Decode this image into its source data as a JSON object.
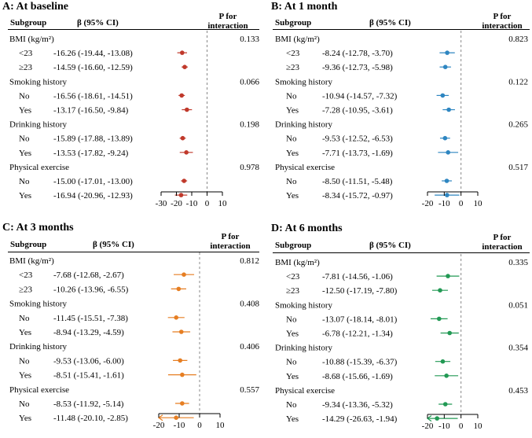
{
  "headers": {
    "subgroup": "Subgroup",
    "beta": "β (95% CI)",
    "p_line1": "P for",
    "p_line2": "interaction"
  },
  "chart_data": [
    {
      "type": "forest",
      "title": "A: At baseline",
      "color": "#c0392b",
      "xlim": [
        -30,
        10
      ],
      "xticks": [
        -30,
        -20,
        -10,
        0,
        10
      ],
      "groups": [
        {
          "name": "BMI (kg/m²)",
          "p": "0.133",
          "rows": [
            {
              "label": "<23",
              "est": -16.26,
              "lo": -19.44,
              "hi": -13.08,
              "ci": "-16.26 (-19.44, -13.08)"
            },
            {
              "label": "≥23",
              "est": -14.59,
              "lo": -16.6,
              "hi": -12.59,
              "ci": "-14.59 (-16.60, -12.59)"
            }
          ]
        },
        {
          "name": "Smoking history",
          "p": "0.066",
          "rows": [
            {
              "label": "No",
              "est": -16.56,
              "lo": -18.61,
              "hi": -14.51,
              "ci": "-16.56 (-18.61, -14.51)"
            },
            {
              "label": "Yes",
              "est": -13.17,
              "lo": -16.5,
              "hi": -9.84,
              "ci": "-13.17 (-16.50, -9.84)"
            }
          ]
        },
        {
          "name": "Drinking history",
          "p": "0.198",
          "rows": [
            {
              "label": "No",
              "est": -15.89,
              "lo": -17.88,
              "hi": -13.89,
              "ci": "-15.89 (-17.88, -13.89)"
            },
            {
              "label": "Yes",
              "est": -13.53,
              "lo": -17.82,
              "hi": -9.24,
              "ci": "-13.53 (-17.82, -9.24)"
            }
          ]
        },
        {
          "name": "Physical exercise",
          "p": "0.978",
          "rows": [
            {
              "label": "No",
              "est": -15.0,
              "lo": -17.01,
              "hi": -13.0,
              "ci": "-15.00 (-17.01, -13.00)"
            },
            {
              "label": "Yes",
              "est": -16.94,
              "lo": -20.96,
              "hi": -12.93,
              "ci": "-16.94 (-20.96, -12.93)"
            }
          ]
        }
      ]
    },
    {
      "type": "forest",
      "title": "B: At 1 month",
      "color": "#2e86c1",
      "xlim": [
        -20,
        10
      ],
      "xticks": [
        -20,
        -10,
        0,
        10
      ],
      "groups": [
        {
          "name": "BMI (kg/m²)",
          "p": "0.823",
          "rows": [
            {
              "label": "<23",
              "est": -8.24,
              "lo": -12.78,
              "hi": -3.7,
              "ci": "-8.24 (-12.78, -3.70)"
            },
            {
              "label": "≥23",
              "est": -9.36,
              "lo": -12.73,
              "hi": -5.98,
              "ci": "-9.36 (-12.73, -5.98)"
            }
          ]
        },
        {
          "name": "Smoking history",
          "p": "0.122",
          "rows": [
            {
              "label": "No",
              "est": -10.94,
              "lo": -14.57,
              "hi": -7.32,
              "ci": "-10.94 (-14.57, -7.32)"
            },
            {
              "label": "Yes",
              "est": -7.28,
              "lo": -10.95,
              "hi": -3.61,
              "ci": "-7.28 (-10.95, -3.61)"
            }
          ]
        },
        {
          "name": "Drinking history",
          "p": "0.265",
          "rows": [
            {
              "label": "No",
              "est": -9.53,
              "lo": -12.52,
              "hi": -6.53,
              "ci": "-9.53 (-12.52, -6.53)"
            },
            {
              "label": "Yes",
              "est": -7.71,
              "lo": -13.73,
              "hi": -1.69,
              "ci": "-7.71 (-13.73, -1.69)"
            }
          ]
        },
        {
          "name": "Physical exercise",
          "p": "0.517",
          "rows": [
            {
              "label": "No",
              "est": -8.5,
              "lo": -11.51,
              "hi": -5.48,
              "ci": "-8.50 (-11.51, -5.48)"
            },
            {
              "label": "Yes",
              "est": -8.34,
              "lo": -15.72,
              "hi": -0.97,
              "ci": "-8.34 (-15.72, -0.97)"
            }
          ]
        }
      ]
    },
    {
      "type": "forest",
      "title": "C: At 3 months",
      "color": "#e67e22",
      "xlim": [
        -20,
        10
      ],
      "xticks": [
        -20,
        -10,
        0,
        10
      ],
      "groups": [
        {
          "name": "BMI (kg/m²)",
          "p": "0.812",
          "rows": [
            {
              "label": "<23",
              "est": -7.68,
              "lo": -12.68,
              "hi": -2.67,
              "ci": "-7.68 (-12.68, -2.67)"
            },
            {
              "label": "≥23",
              "est": -10.26,
              "lo": -13.96,
              "hi": -6.55,
              "ci": "-10.26 (-13.96, -6.55)"
            }
          ]
        },
        {
          "name": "Smoking history",
          "p": "0.408",
          "rows": [
            {
              "label": "No",
              "est": -11.45,
              "lo": -15.51,
              "hi": -7.38,
              "ci": "-11.45 (-15.51, -7.38)"
            },
            {
              "label": "Yes",
              "est": -8.94,
              "lo": -13.29,
              "hi": -4.59,
              "ci": "-8.94 (-13.29, -4.59)"
            }
          ]
        },
        {
          "name": "Drinking history",
          "p": "0.406",
          "rows": [
            {
              "label": "No",
              "est": -9.53,
              "lo": -13.06,
              "hi": -6.0,
              "ci": "-9.53 (-13.06, -6.00)"
            },
            {
              "label": "Yes",
              "est": -8.51,
              "lo": -15.41,
              "hi": -1.61,
              "ci": "-8.51 (-15.41, -1.61)"
            }
          ]
        },
        {
          "name": "Physical exercise",
          "p": "0.557",
          "rows": [
            {
              "label": "No",
              "est": -8.53,
              "lo": -11.92,
              "hi": -5.14,
              "ci": "-8.53 (-11.92, -5.14)"
            },
            {
              "label": "Yes",
              "est": -11.48,
              "lo": -20.1,
              "hi": -2.85,
              "ci": "-11.48 (-20.10, -2.85)"
            }
          ]
        }
      ]
    },
    {
      "type": "forest",
      "title": "D: At 6 months",
      "color": "#229954",
      "xlim": [
        -20,
        10
      ],
      "xticks": [
        -20,
        -10,
        0,
        10
      ],
      "groups": [
        {
          "name": "BMI (kg/m²)",
          "p": "0.335",
          "rows": [
            {
              "label": "<23",
              "est": -7.81,
              "lo": -14.56,
              "hi": -1.06,
              "ci": "-7.81 (-14.56, -1.06)"
            },
            {
              "label": "≥23",
              "est": -12.5,
              "lo": -17.19,
              "hi": -7.8,
              "ci": "-12.50 (-17.19, -7.80)"
            }
          ]
        },
        {
          "name": "Smoking history",
          "p": "0.051",
          "rows": [
            {
              "label": "No",
              "est": -13.07,
              "lo": -18.14,
              "hi": -8.01,
              "ci": "-13.07 (-18.14, -8.01)"
            },
            {
              "label": "Yes",
              "est": -6.78,
              "lo": -12.21,
              "hi": -1.34,
              "ci": "-6.78 (-12.21, -1.34)"
            }
          ]
        },
        {
          "name": "Drinking history",
          "p": "0.354",
          "rows": [
            {
              "label": "No",
              "est": -10.88,
              "lo": -15.39,
              "hi": -6.37,
              "ci": "-10.88 (-15.39, -6.37)"
            },
            {
              "label": "Yes",
              "est": -8.68,
              "lo": -15.66,
              "hi": -1.69,
              "ci": "-8.68 (-15.66, -1.69)"
            }
          ]
        },
        {
          "name": "Physical exercise",
          "p": "0.453",
          "rows": [
            {
              "label": "No",
              "est": -9.34,
              "lo": -13.36,
              "hi": -5.32,
              "ci": "-9.34 (-13.36, -5.32)"
            },
            {
              "label": "Yes",
              "est": -14.29,
              "lo": -26.63,
              "hi": -1.94,
              "ci": "-14.29 (-26.63, -1.94)"
            }
          ]
        }
      ]
    }
  ]
}
